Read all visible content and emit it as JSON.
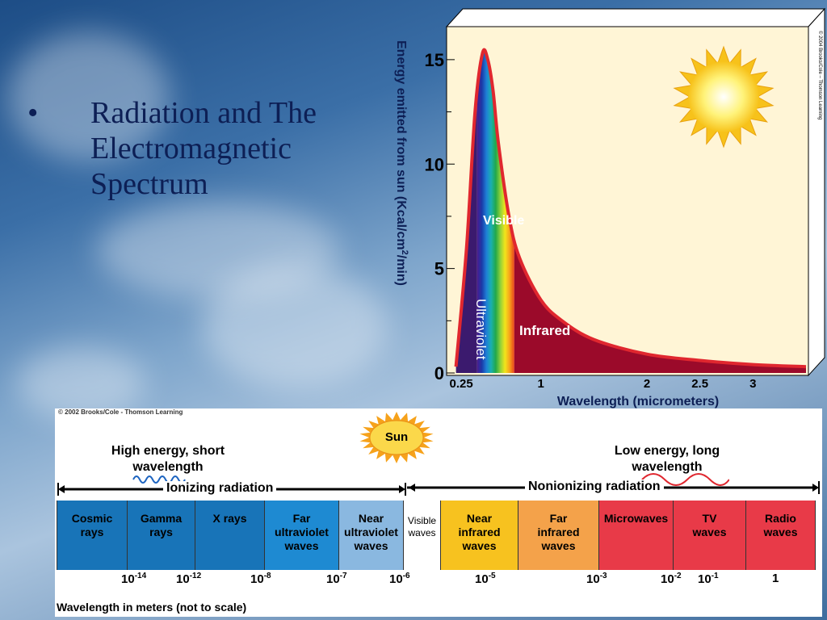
{
  "slide": {
    "bullet": "•",
    "title_lines": [
      "Radiation and The",
      "Electromagnetic",
      "Spectrum"
    ]
  },
  "chart_data": {
    "type": "area",
    "xlabel": "Wavelength (micrometers)",
    "ylabel": "Energy emitted from sun (Kcal/cm²/min)",
    "x_ticks": [
      "0.25",
      "1",
      "2",
      "2.5",
      "3"
    ],
    "x_tick_values": [
      0.25,
      1,
      2,
      2.5,
      3
    ],
    "y_ticks": [
      "0",
      "5",
      "10",
      "15"
    ],
    "y_tick_values": [
      0,
      5,
      10,
      15
    ],
    "xlim": [
      0.15,
      3.5
    ],
    "ylim": [
      0,
      16
    ],
    "series": [
      {
        "x": [
          0.2,
          0.3,
          0.38,
          0.45,
          0.5,
          0.55,
          0.6,
          0.7,
          0.8,
          1.0,
          1.2,
          1.5,
          2.0,
          2.5,
          3.0,
          3.5
        ],
        "y": [
          0.3,
          6.0,
          12.5,
          15.3,
          15.0,
          13.5,
          11.0,
          7.5,
          5.5,
          3.5,
          2.5,
          1.6,
          0.9,
          0.6,
          0.4,
          0.3
        ]
      }
    ],
    "regions": [
      {
        "label": "Ultraviolet",
        "from": 0.2,
        "to": 0.4,
        "color": "#3b1a6e"
      },
      {
        "label": "Visible",
        "from": 0.4,
        "to": 0.75
      },
      {
        "label": "Infrared",
        "from": 0.75,
        "to": 3.5,
        "color": "#9b0a2a"
      }
    ],
    "visible_gradient": [
      "#4b1b8f",
      "#1a3aa8",
      "#1f7fd6",
      "#19b0b0",
      "#22a84a",
      "#8fd13a",
      "#f1e51b",
      "#f7a21b",
      "#e8411b"
    ],
    "curve_color": "#e0272f",
    "background": "#fff5d6",
    "copyright": "© 2004 Brooks/Cole – Thomson Learning"
  },
  "spectrum": {
    "copyright": "© 2002 Brooks/Cole - Thomson Learning",
    "sun_label": "Sun",
    "high_energy": "High energy, short wavelength",
    "low_energy": "Low energy, long wavelength",
    "ionizing": "Ionizing radiation",
    "nonionizing": "Nonionizing radiation",
    "bands": [
      {
        "lines": [
          "Cosmic",
          "rays"
        ],
        "color": "#1874b8"
      },
      {
        "lines": [
          "Gamma",
          "rays"
        ],
        "color": "#1874b8"
      },
      {
        "lines": [
          "X rays"
        ],
        "color": "#1874b8"
      },
      {
        "lines": [
          "Far",
          "ultraviolet",
          "waves"
        ],
        "color": "#1e8ad2"
      },
      {
        "lines": [
          "Near",
          "ultraviolet",
          "waves"
        ],
        "color": "#8ab8e0"
      },
      {
        "lines": [
          "Visible",
          "waves"
        ],
        "color": "#ffffff"
      },
      {
        "lines": [
          "Near",
          "infrared",
          "waves"
        ],
        "color": "#f7c21f"
      },
      {
        "lines": [
          "Far",
          "infrared",
          "waves"
        ],
        "color": "#f4a24a"
      },
      {
        "lines": [
          "Microwaves"
        ],
        "color": "#e83a48"
      },
      {
        "lines": [
          "TV",
          "waves"
        ],
        "color": "#e83a48"
      },
      {
        "lines": [
          "Radio",
          "waves"
        ],
        "color": "#e83a48"
      }
    ],
    "ticks": [
      {
        "base": "10",
        "exp": "-14"
      },
      {
        "base": "10",
        "exp": "-12"
      },
      {
        "base": "10",
        "exp": "-8"
      },
      {
        "base": "10",
        "exp": "-7"
      },
      {
        "base": "10",
        "exp": "-6"
      },
      {
        "base": "10",
        "exp": "-5"
      },
      {
        "base": "10",
        "exp": "-3"
      },
      {
        "base": "10",
        "exp": "-2"
      },
      {
        "base": "10",
        "exp": "-1"
      },
      {
        "base": "1",
        "exp": ""
      }
    ],
    "axis_label": "Wavelength in meters (not to scale)"
  }
}
